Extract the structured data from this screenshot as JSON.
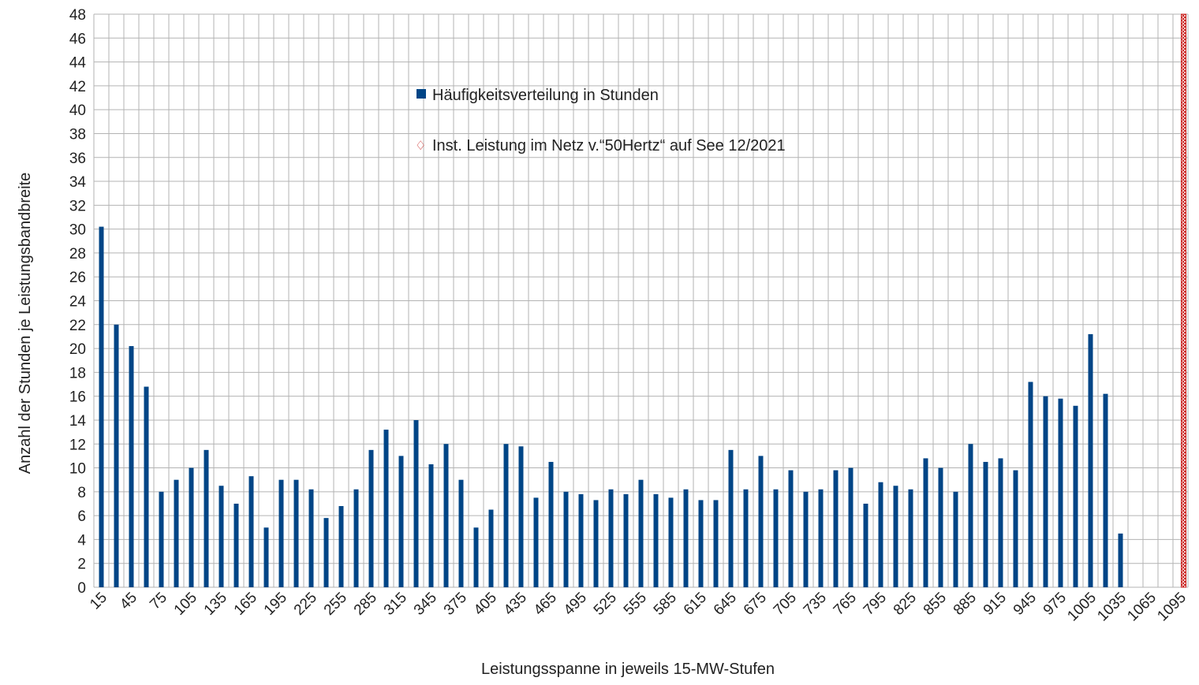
{
  "chart_data": {
    "type": "bar",
    "x_label": "Leistungsspanne in jeweils 15-MW-Stufen",
    "y_label": "Anzahl der Stunden je Leistungsbandbreite",
    "categories": [
      "15",
      null,
      "45",
      null,
      "75",
      null,
      "105",
      null,
      "135",
      null,
      "165",
      null,
      "195",
      null,
      "225",
      null,
      "255",
      null,
      "285",
      null,
      "315",
      null,
      "345",
      null,
      "375",
      null,
      "405",
      null,
      "435",
      null,
      "465",
      null,
      "495",
      null,
      "525",
      null,
      "555",
      null,
      "585",
      null,
      "615",
      null,
      "645",
      null,
      "675",
      null,
      "705",
      null,
      "735",
      null,
      "765",
      null,
      "795",
      null,
      "825",
      null,
      "855",
      null,
      "885",
      null,
      "915",
      null,
      "945",
      null,
      "975",
      null,
      "1005",
      null,
      "1035",
      null,
      "1065",
      null,
      "1095"
    ],
    "series": [
      {
        "name": "Häufigkeitsverteilung in Stunden",
        "color": "#004586",
        "values": [
          30.2,
          22,
          20.2,
          16.8,
          8,
          9,
          10,
          11.5,
          8.5,
          7,
          9.3,
          5,
          9,
          9,
          8.2,
          5.8,
          6.8,
          8.2,
          11.5,
          13.2,
          11,
          14,
          10.3,
          12,
          9,
          5,
          6.5,
          12,
          11.8,
          7.5,
          10.5,
          8,
          7.8,
          7.3,
          8.2,
          7.8,
          9,
          7.8,
          7.5,
          8.2,
          7.3,
          7.3,
          11.5,
          8.2,
          11,
          8.2,
          9.8,
          8,
          8.2,
          9.8,
          10,
          7,
          8.8,
          8.5,
          8.2,
          10.8,
          10,
          8,
          12,
          10.5,
          10.8,
          9.8,
          17.2,
          16,
          15.8,
          15.2,
          21.2,
          16.2,
          4.5,
          null,
          null,
          null,
          null
        ]
      },
      {
        "name": "Inst. Leistung im Netz v.“50Hertz“ auf See 12/2021",
        "color": "#c9211e",
        "values": [
          null,
          null,
          null,
          null,
          null,
          null,
          null,
          null,
          null,
          null,
          null,
          null,
          null,
          null,
          null,
          null,
          null,
          null,
          null,
          null,
          null,
          null,
          null,
          null,
          null,
          null,
          null,
          null,
          null,
          null,
          null,
          null,
          null,
          null,
          null,
          null,
          null,
          null,
          null,
          null,
          null,
          null,
          null,
          null,
          null,
          null,
          null,
          null,
          null,
          null,
          null,
          null,
          null,
          null,
          null,
          null,
          null,
          null,
          null,
          null,
          null,
          null,
          null,
          null,
          null,
          null,
          null,
          null,
          null,
          null,
          null,
          null,
          48
        ]
      }
    ],
    "ylim": [
      0,
      48
    ],
    "yticks": [
      0,
      2,
      4,
      6,
      8,
      10,
      12,
      14,
      16,
      18,
      20,
      22,
      24,
      26,
      28,
      30,
      32,
      34,
      36,
      38,
      40,
      42,
      44,
      46,
      48
    ],
    "grid": true
  }
}
